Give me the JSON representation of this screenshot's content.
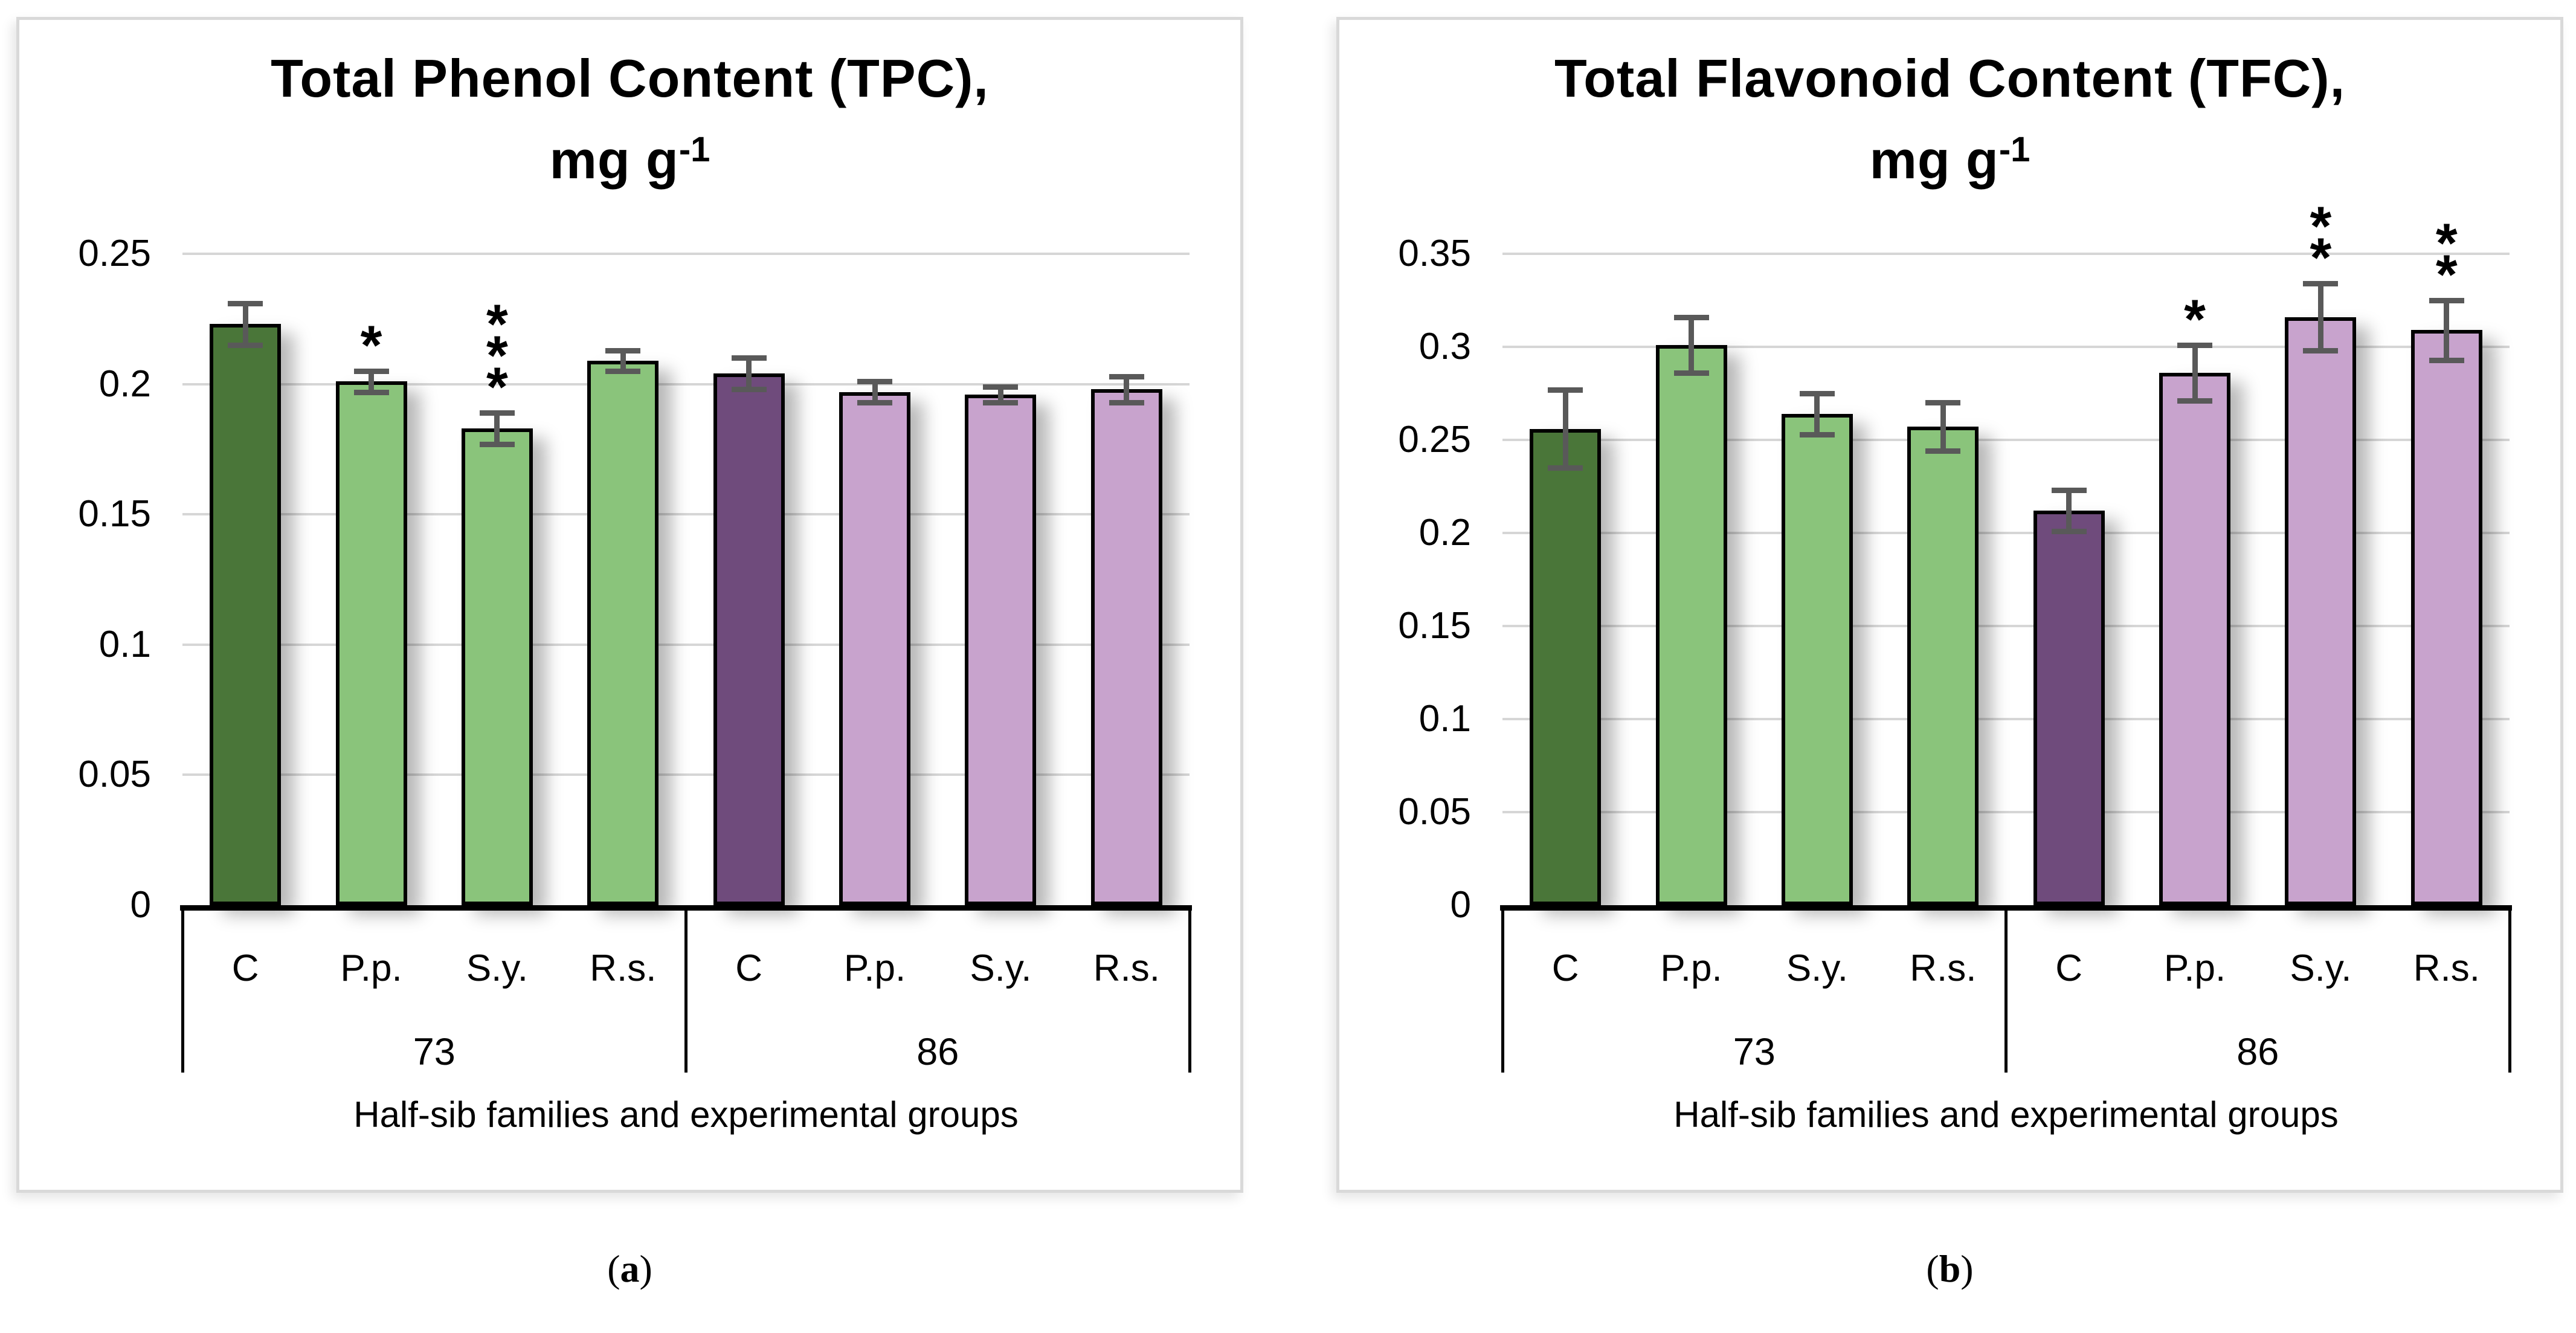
{
  "figure": {
    "description": "Two grouped bar charts comparing half-sib families 73 and 86 across experimental groups"
  },
  "colors": {
    "dark_green": "#4a7639",
    "light_green": "#8ac47b",
    "dark_purple": "#6f4b7c",
    "light_purple": "#c8a3cd",
    "error_bar": "#595959",
    "gridline": "#d6d6d6",
    "axis_line": "#000000",
    "panel_border": "#d9d9d9"
  },
  "chart_data": [
    {
      "id": "tpc",
      "type": "bar",
      "title_line1": "Total Phenol Content (TPC),",
      "unit_base": "mg g",
      "unit_sup": "-1",
      "xlabel": "Half-sib families and experimental groups",
      "ylim": [
        0,
        0.25
      ],
      "yticks": [
        0,
        0.05,
        0.1,
        0.15,
        0.2,
        0.25
      ],
      "ytick_labels": [
        "0",
        "0.05",
        "0.1",
        "0.15",
        "0.2",
        "0.25"
      ],
      "grid": true,
      "legend": "none",
      "groups": [
        {
          "label": "73",
          "bars": [
            {
              "category": "C",
              "value": 0.223,
              "error": 0.008,
              "sig": "",
              "color": "dark_green"
            },
            {
              "category": "P.p.",
              "value": 0.201,
              "error": 0.004,
              "sig": "*",
              "color": "light_green"
            },
            {
              "category": "S.y.",
              "value": 0.183,
              "error": 0.006,
              "sig": "***",
              "color": "light_green"
            },
            {
              "category": "R.s.",
              "value": 0.209,
              "error": 0.004,
              "sig": "",
              "color": "light_green"
            }
          ]
        },
        {
          "label": "86",
          "bars": [
            {
              "category": "C",
              "value": 0.204,
              "error": 0.006,
              "sig": "",
              "color": "dark_purple"
            },
            {
              "category": "P.p.",
              "value": 0.197,
              "error": 0.004,
              "sig": "",
              "color": "light_purple"
            },
            {
              "category": "S.y.",
              "value": 0.196,
              "error": 0.003,
              "sig": "",
              "color": "light_purple"
            },
            {
              "category": "R.s.",
              "value": 0.198,
              "error": 0.005,
              "sig": "",
              "color": "light_purple"
            }
          ]
        }
      ],
      "caption_open": "(",
      "caption_letter": "a",
      "caption_close": ")"
    },
    {
      "id": "tfc",
      "type": "bar",
      "title_line1": "Total Flavonoid Content (TFC),",
      "unit_base": "mg g",
      "unit_sup": "-1",
      "xlabel": "Half-sib families and experimental groups",
      "ylim": [
        0,
        0.35
      ],
      "yticks": [
        0,
        0.05,
        0.1,
        0.15,
        0.2,
        0.25,
        0.3,
        0.35
      ],
      "ytick_labels": [
        "0",
        "0.05",
        "0.1",
        "0.15",
        "0.2",
        "0.25",
        "0.3",
        "0.35"
      ],
      "grid": true,
      "legend": "none",
      "groups": [
        {
          "label": "73",
          "bars": [
            {
              "category": "C",
              "value": 0.256,
              "error": 0.021,
              "sig": "",
              "color": "dark_green"
            },
            {
              "category": "P.p.",
              "value": 0.301,
              "error": 0.015,
              "sig": "",
              "color": "light_green"
            },
            {
              "category": "S.y.",
              "value": 0.264,
              "error": 0.011,
              "sig": "",
              "color": "light_green"
            },
            {
              "category": "R.s.",
              "value": 0.257,
              "error": 0.013,
              "sig": "",
              "color": "light_green"
            }
          ]
        },
        {
          "label": "86",
          "bars": [
            {
              "category": "C",
              "value": 0.212,
              "error": 0.011,
              "sig": "",
              "color": "dark_purple"
            },
            {
              "category": "P.p.",
              "value": 0.286,
              "error": 0.015,
              "sig": "*",
              "color": "light_purple"
            },
            {
              "category": "S.y.",
              "value": 0.316,
              "error": 0.018,
              "sig": "**",
              "color": "light_purple"
            },
            {
              "category": "R.s.",
              "value": 0.309,
              "error": 0.016,
              "sig": "**",
              "color": "light_purple"
            }
          ]
        }
      ],
      "caption_open": "(",
      "caption_letter": "b",
      "caption_close": ")"
    }
  ]
}
